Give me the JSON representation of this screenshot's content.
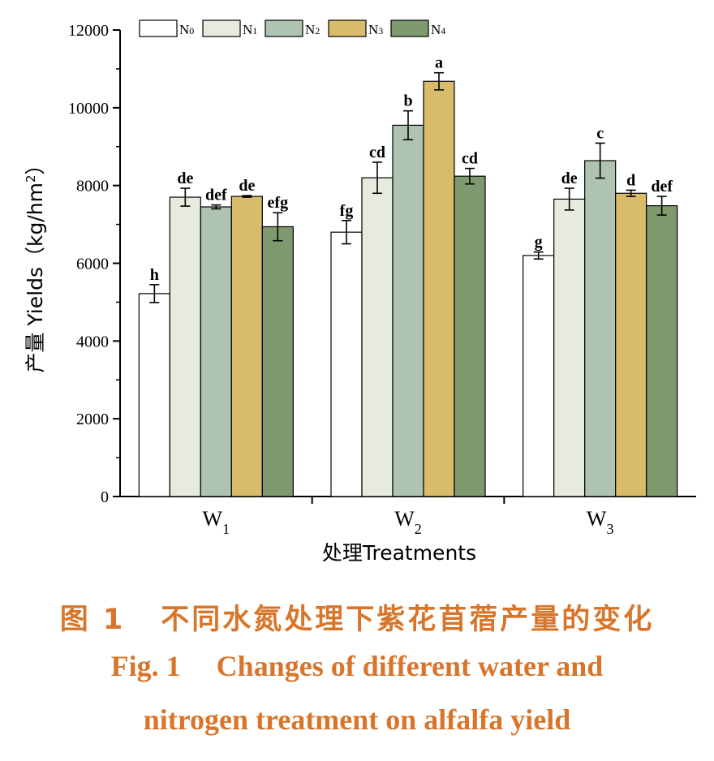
{
  "chart_data": {
    "type": "bar",
    "categories": [
      "W1",
      "W2",
      "W3"
    ],
    "category_labels": [
      {
        "base": "W",
        "sub": "1"
      },
      {
        "base": "W",
        "sub": "2"
      },
      {
        "base": "W",
        "sub": "3"
      }
    ],
    "series": [
      {
        "name": "N0",
        "label_base": "N",
        "label_sub": "0",
        "color": "#ffffff",
        "values": [
          5220,
          6800,
          6200
        ],
        "errors": [
          230,
          300,
          90
        ],
        "letters": [
          "h",
          "fg",
          "g"
        ]
      },
      {
        "name": "N1",
        "label_base": "N",
        "label_sub": "1",
        "color": "#e9eadf",
        "values": [
          7700,
          8200,
          7650
        ],
        "errors": [
          230,
          400,
          280
        ],
        "letters": [
          "de",
          "cd",
          "de"
        ]
      },
      {
        "name": "N2",
        "label_base": "N",
        "label_sub": "2",
        "color": "#aec3b1",
        "values": [
          7450,
          9550,
          8640
        ],
        "errors": [
          50,
          370,
          450
        ],
        "letters": [
          "def",
          "b",
          "c"
        ]
      },
      {
        "name": "N3",
        "label_base": "N",
        "label_sub": "3",
        "color": "#d9bc69",
        "values": [
          7720,
          10680,
          7800
        ],
        "errors": [
          20,
          220,
          80
        ],
        "letters": [
          "de",
          "a",
          "d"
        ]
      },
      {
        "name": "N4",
        "label_base": "N",
        "label_sub": "4",
        "color": "#7e9a6e",
        "values": [
          6940,
          8240,
          7480
        ],
        "errors": [
          360,
          200,
          240
        ],
        "letters": [
          "efg",
          "cd",
          "def"
        ]
      }
    ],
    "ylim": [
      0,
      12000
    ],
    "yticks": [
      0,
      2000,
      4000,
      6000,
      8000,
      10000,
      12000
    ],
    "xlabel": "处理Treatments",
    "ylabel_main": "产量 Yields（kg/hm",
    "ylabel_sup": "2",
    "ylabel_end": "）",
    "legend_position": "top",
    "grid": false
  },
  "caption": {
    "cn_num": "图 1",
    "cn_text": "不同水氮处理下紫花苜蓿产量的变化",
    "en_num": "Fig. 1",
    "en_line1": "Changes of different water and",
    "en_line2": "nitrogen treatment on alfalfa yield"
  }
}
